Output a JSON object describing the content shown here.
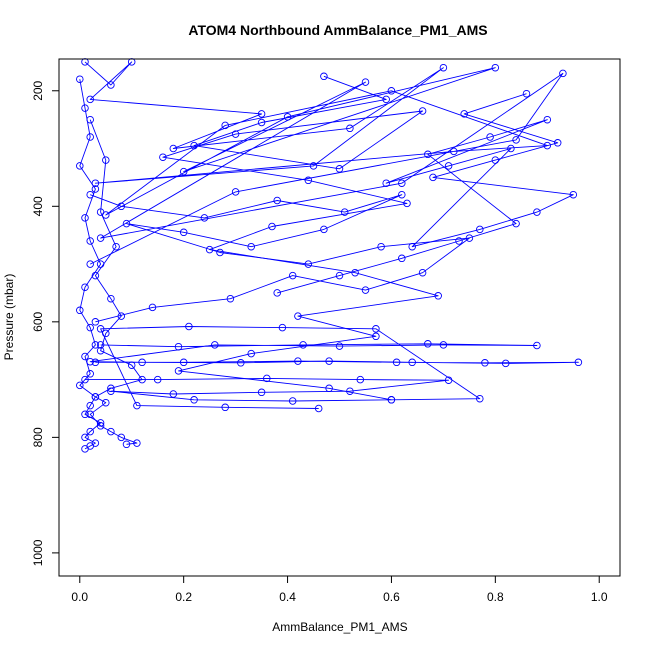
{
  "chart_data": {
    "type": "scatter",
    "title": "ATOM4 Northbound AmmBalance_PM1_AMS",
    "xlabel": "AmmBalance_PM1_AMS",
    "ylabel": "Pressure (mbar)",
    "xlim": [
      -0.04,
      1.04
    ],
    "ylim": [
      1040,
      145
    ],
    "y_reversed": true,
    "x_ticks": [
      0.0,
      0.2,
      0.4,
      0.6,
      0.8,
      1.0
    ],
    "x_tick_labels": [
      "0.0",
      "0.2",
      "0.4",
      "0.6",
      "0.8",
      "1.0"
    ],
    "y_ticks": [
      200,
      400,
      600,
      800,
      1000
    ],
    "y_tick_labels": [
      "200",
      "400",
      "600",
      "800",
      "1000"
    ],
    "grid": false,
    "legend": "none",
    "colors": {
      "series": "#0000ff",
      "axis": "#000000"
    },
    "series": [
      {
        "x": [
          0.01,
          0.06,
          0.1,
          0.02,
          0.35,
          0.18,
          0.52,
          0.7,
          0.45,
          0.03,
          0.72,
          0.9,
          0.6,
          0.28,
          0.05,
          0.4,
          0.8,
          0.2,
          0.55,
          0.04,
          0.62,
          0.93,
          0.84,
          0.3,
          0.02
        ],
        "y": [
          150,
          190,
          150,
          215,
          240,
          300,
          265,
          160,
          330,
          360,
          305,
          295,
          200,
          260,
          415,
          245,
          160,
          340,
          185,
          455,
          360,
          170,
          285,
          375,
          500
        ]
      },
      {
        "x": [
          0.02,
          0.08,
          0.24,
          0.38,
          0.51,
          0.62,
          0.47,
          0.33,
          0.2,
          0.09,
          0.27,
          0.44,
          0.58,
          0.75,
          0.66,
          0.55,
          0.41,
          0.29,
          0.14,
          0.03
        ],
        "y": [
          380,
          400,
          420,
          390,
          410,
          380,
          440,
          470,
          445,
          430,
          480,
          500,
          470,
          455,
          515,
          545,
          520,
          560,
          575,
          600
        ]
      },
      {
        "x": [
          0.03,
          0.2,
          0.42,
          0.61,
          0.78,
          0.96,
          0.82,
          0.64,
          0.48,
          0.31,
          0.12,
          0.02,
          0.26,
          0.5,
          0.7,
          0.88,
          0.67,
          0.43,
          0.19,
          0.04
        ],
        "y": [
          670,
          670,
          668,
          670,
          671,
          670,
          672,
          670,
          668,
          671,
          670,
          669,
          640,
          642,
          640,
          641,
          638,
          640,
          643,
          640
        ]
      },
      {
        "x": [
          0.01,
          0.15,
          0.36,
          0.54,
          0.71,
          0.52,
          0.35,
          0.18,
          0.06,
          0.22,
          0.41,
          0.6,
          0.77,
          0.57,
          0.39,
          0.21,
          0.04,
          0.11,
          0.28,
          0.46
        ],
        "y": [
          700,
          700,
          698,
          700,
          701,
          720,
          722,
          725,
          720,
          735,
          737,
          735,
          733,
          612,
          610,
          608,
          612,
          745,
          748,
          750
        ]
      },
      {
        "x": [
          0.0,
          0.01,
          0.02,
          0.0,
          0.03,
          0.01,
          0.02,
          0.04,
          0.01,
          0.0,
          0.02,
          0.03,
          0.01,
          0.02,
          0.0,
          0.03,
          0.02,
          0.01,
          0.04,
          0.02,
          0.01,
          0.03,
          0.02,
          0.01
        ],
        "y": [
          180,
          230,
          280,
          330,
          370,
          420,
          460,
          500,
          540,
          580,
          610,
          640,
          660,
          690,
          710,
          730,
          745,
          760,
          775,
          790,
          800,
          810,
          815,
          820
        ]
      },
      {
        "x": [
          0.02,
          0.05,
          0.04,
          0.07,
          0.03,
          0.06,
          0.08,
          0.05,
          0.04,
          0.1,
          0.12,
          0.06,
          0.03,
          0.05,
          0.02,
          0.04,
          0.06,
          0.08,
          0.11,
          0.09
        ],
        "y": [
          250,
          320,
          410,
          470,
          520,
          560,
          590,
          620,
          650,
          675,
          700,
          715,
          730,
          740,
          760,
          780,
          790,
          800,
          810,
          812
        ]
      },
      {
        "x": [
          0.86,
          0.74,
          0.92,
          0.8,
          0.68,
          0.95,
          0.88,
          0.77,
          0.64,
          0.83,
          0.71,
          0.59,
          0.9,
          0.79,
          0.67,
          0.84,
          0.73,
          0.62,
          0.5,
          0.38
        ],
        "y": [
          205,
          240,
          290,
          320,
          350,
          380,
          410,
          440,
          470,
          300,
          330,
          360,
          250,
          280,
          310,
          430,
          460,
          490,
          520,
          550
        ]
      },
      {
        "x": [
          0.47,
          0.59,
          0.35,
          0.22,
          0.5,
          0.66,
          0.3,
          0.16,
          0.44,
          0.63,
          0.37,
          0.25,
          0.53,
          0.69,
          0.42,
          0.57,
          0.33,
          0.19,
          0.48,
          0.6
        ],
        "y": [
          175,
          215,
          255,
          295,
          335,
          235,
          275,
          315,
          355,
          395,
          435,
          475,
          515,
          555,
          590,
          625,
          655,
          685,
          715,
          735
        ]
      }
    ]
  }
}
